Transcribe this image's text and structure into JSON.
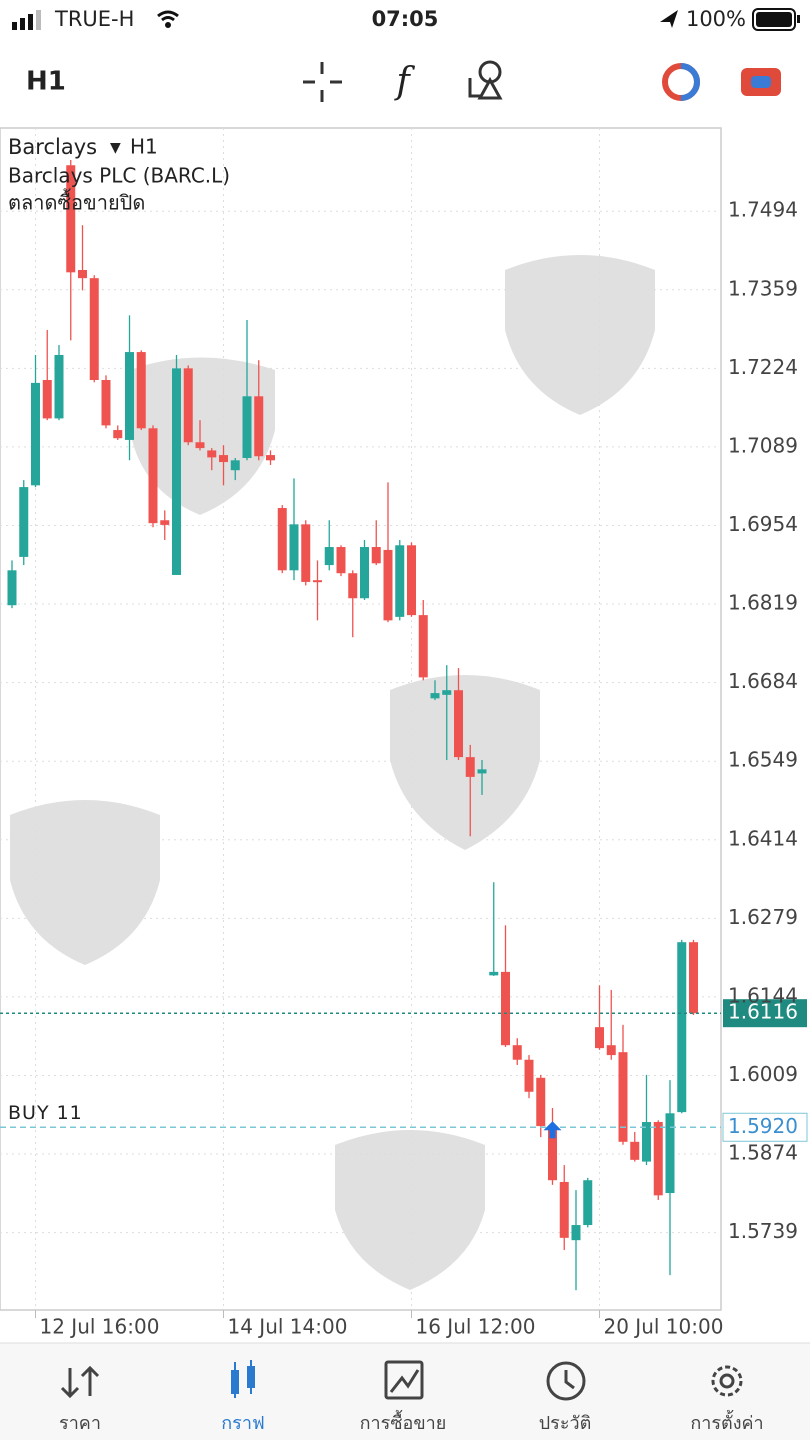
{
  "status_bar": {
    "carrier": "TRUE-H",
    "time": "07:05",
    "battery": "100%"
  },
  "toolbar": {
    "timeframe": "H1"
  },
  "chart_data": {
    "type": "candlestick",
    "symbol": "Barclays",
    "timeframe": "H1",
    "description": "Barclays PLC (BARC.L)",
    "market_status": "ตลาดซื้อขายปิด",
    "categories": [
      null,
      null,
      "12 Jul 16:00",
      null,
      null,
      null,
      null,
      null,
      null,
      null,
      null,
      null,
      null,
      null,
      null,
      null,
      null,
      null,
      "14 Jul 14:00",
      null,
      null,
      null,
      null,
      null,
      null,
      null,
      null,
      null,
      null,
      null,
      null,
      null,
      null,
      null,
      "16 Jul 12:00",
      null,
      null,
      null,
      null,
      null,
      null,
      null,
      null,
      null,
      null,
      null,
      null,
      null,
      null,
      null,
      "20 Jul 10:00",
      null,
      null,
      null,
      null,
      null,
      null,
      null,
      null
    ],
    "open": [
      1.6817,
      1.69,
      1.7023,
      1.7204,
      1.7138,
      1.7573,
      1.7393,
      1.7379,
      1.7204,
      1.7118,
      1.7101,
      1.7252,
      1.7121,
      1.6963,
      1.6869,
      1.7224,
      1.7097,
      1.7083,
      1.7075,
      1.7049,
      1.707,
      1.7176,
      1.7075,
      1.6984,
      1.6877,
      1.6956,
      1.686,
      1.6886,
      1.6917,
      1.6872,
      1.6829,
      1.6917,
      1.6912,
      1.6797,
      1.692,
      1.68,
      1.6657,
      1.6663,
      1.6671,
      1.6556,
      1.6528,
      1.6181,
      1.6187,
      1.6061,
      1.6036,
      1.6005,
      1.5922,
      1.5826,
      1.5726,
      1.5752,
      1.6092,
      1.6061,
      1.6049,
      1.5895,
      1.5861,
      1.5929,
      1.5807,
      1.5946,
      1.6238
    ],
    "high": [
      1.6894,
      1.7032,
      1.7247,
      1.729,
      1.7264,
      1.7582,
      1.747,
      1.7384,
      1.7212,
      1.7126,
      1.7315,
      1.7255,
      1.7126,
      1.698,
      1.7247,
      1.7229,
      1.7135,
      1.7087,
      1.7092,
      1.707,
      1.7307,
      1.7238,
      1.7083,
      1.6989,
      1.7035,
      1.6963,
      1.6894,
      1.6963,
      1.692,
      1.6877,
      1.6929,
      1.6963,
      1.7028,
      1.6929,
      1.6925,
      1.6826,
      1.6688,
      1.6714,
      1.6709,
      1.6577,
      1.6551,
      1.6341,
      1.6267,
      1.6073,
      1.6044,
      1.601,
      1.5953,
      1.5855,
      1.5812,
      1.5833,
      1.6164,
      1.6156,
      1.6096,
      1.5912,
      1.601,
      1.5932,
      1.6001,
      1.6242,
      1.6242
    ],
    "low": [
      1.6812,
      1.6886,
      1.702,
      1.7135,
      1.7135,
      1.7272,
      1.7358,
      1.72,
      1.7121,
      1.7101,
      1.7066,
      1.7118,
      1.6951,
      1.6929,
      1.6869,
      1.7092,
      1.7083,
      1.7049,
      1.7023,
      1.7032,
      1.7066,
      1.7066,
      1.7058,
      1.6872,
      1.686,
      1.6851,
      1.6791,
      1.6877,
      1.6867,
      1.6762,
      1.6826,
      1.6886,
      1.6788,
      1.6791,
      1.6797,
      1.6688,
      1.6654,
      1.6551,
      1.6551,
      1.642,
      1.6491,
      1.618,
      1.6058,
      1.6027,
      1.597,
      1.5903,
      1.5821,
      1.5709,
      1.564,
      1.5748,
      1.6053,
      1.6036,
      1.589,
      1.5861,
      1.5855,
      1.5795,
      1.5666,
      1.5944,
      1.6113
    ],
    "close": [
      1.6877,
      1.702,
      1.7199,
      1.7138,
      1.7247,
      1.7389,
      1.7379,
      1.7204,
      1.7126,
      1.7104,
      1.7252,
      1.7121,
      1.6958,
      1.6955,
      1.7224,
      1.7097,
      1.7087,
      1.7071,
      1.7063,
      1.7066,
      1.7176,
      1.7073,
      1.7066,
      1.6877,
      1.6956,
      1.6857,
      1.6857,
      1.6917,
      1.6872,
      1.6829,
      1.6917,
      1.6889,
      1.6791,
      1.692,
      1.68,
      1.6693,
      1.6666,
      1.6671,
      1.6556,
      1.6522,
      1.6535,
      1.6187,
      1.6061,
      1.6036,
      1.5981,
      1.5922,
      1.5829,
      1.573,
      1.5752,
      1.5829,
      1.6056,
      1.6044,
      1.5895,
      1.5864,
      1.5929,
      1.5803,
      1.5944,
      1.6238,
      1.6116
    ],
    "up_color": "#26a69a",
    "down_color": "#ef5350",
    "ylim": [
      1.5606,
      1.7637
    ],
    "yticks": [
      1.5739,
      1.5874,
      1.6009,
      1.6144,
      1.6279,
      1.6414,
      1.6549,
      1.6684,
      1.6819,
      1.6954,
      1.7089,
      1.7224,
      1.7359,
      1.7494
    ],
    "grid": true,
    "current_price": 1.6116,
    "position": {
      "label": "BUY 11",
      "price": {
        "value": 1.592,
        "label": "1.5920"
      }
    }
  },
  "nav": {
    "items": [
      "ราคา",
      "กราฟ",
      "การซื้อขาย",
      "ประวัติ",
      "การตั้งค่า"
    ],
    "active": 1
  }
}
